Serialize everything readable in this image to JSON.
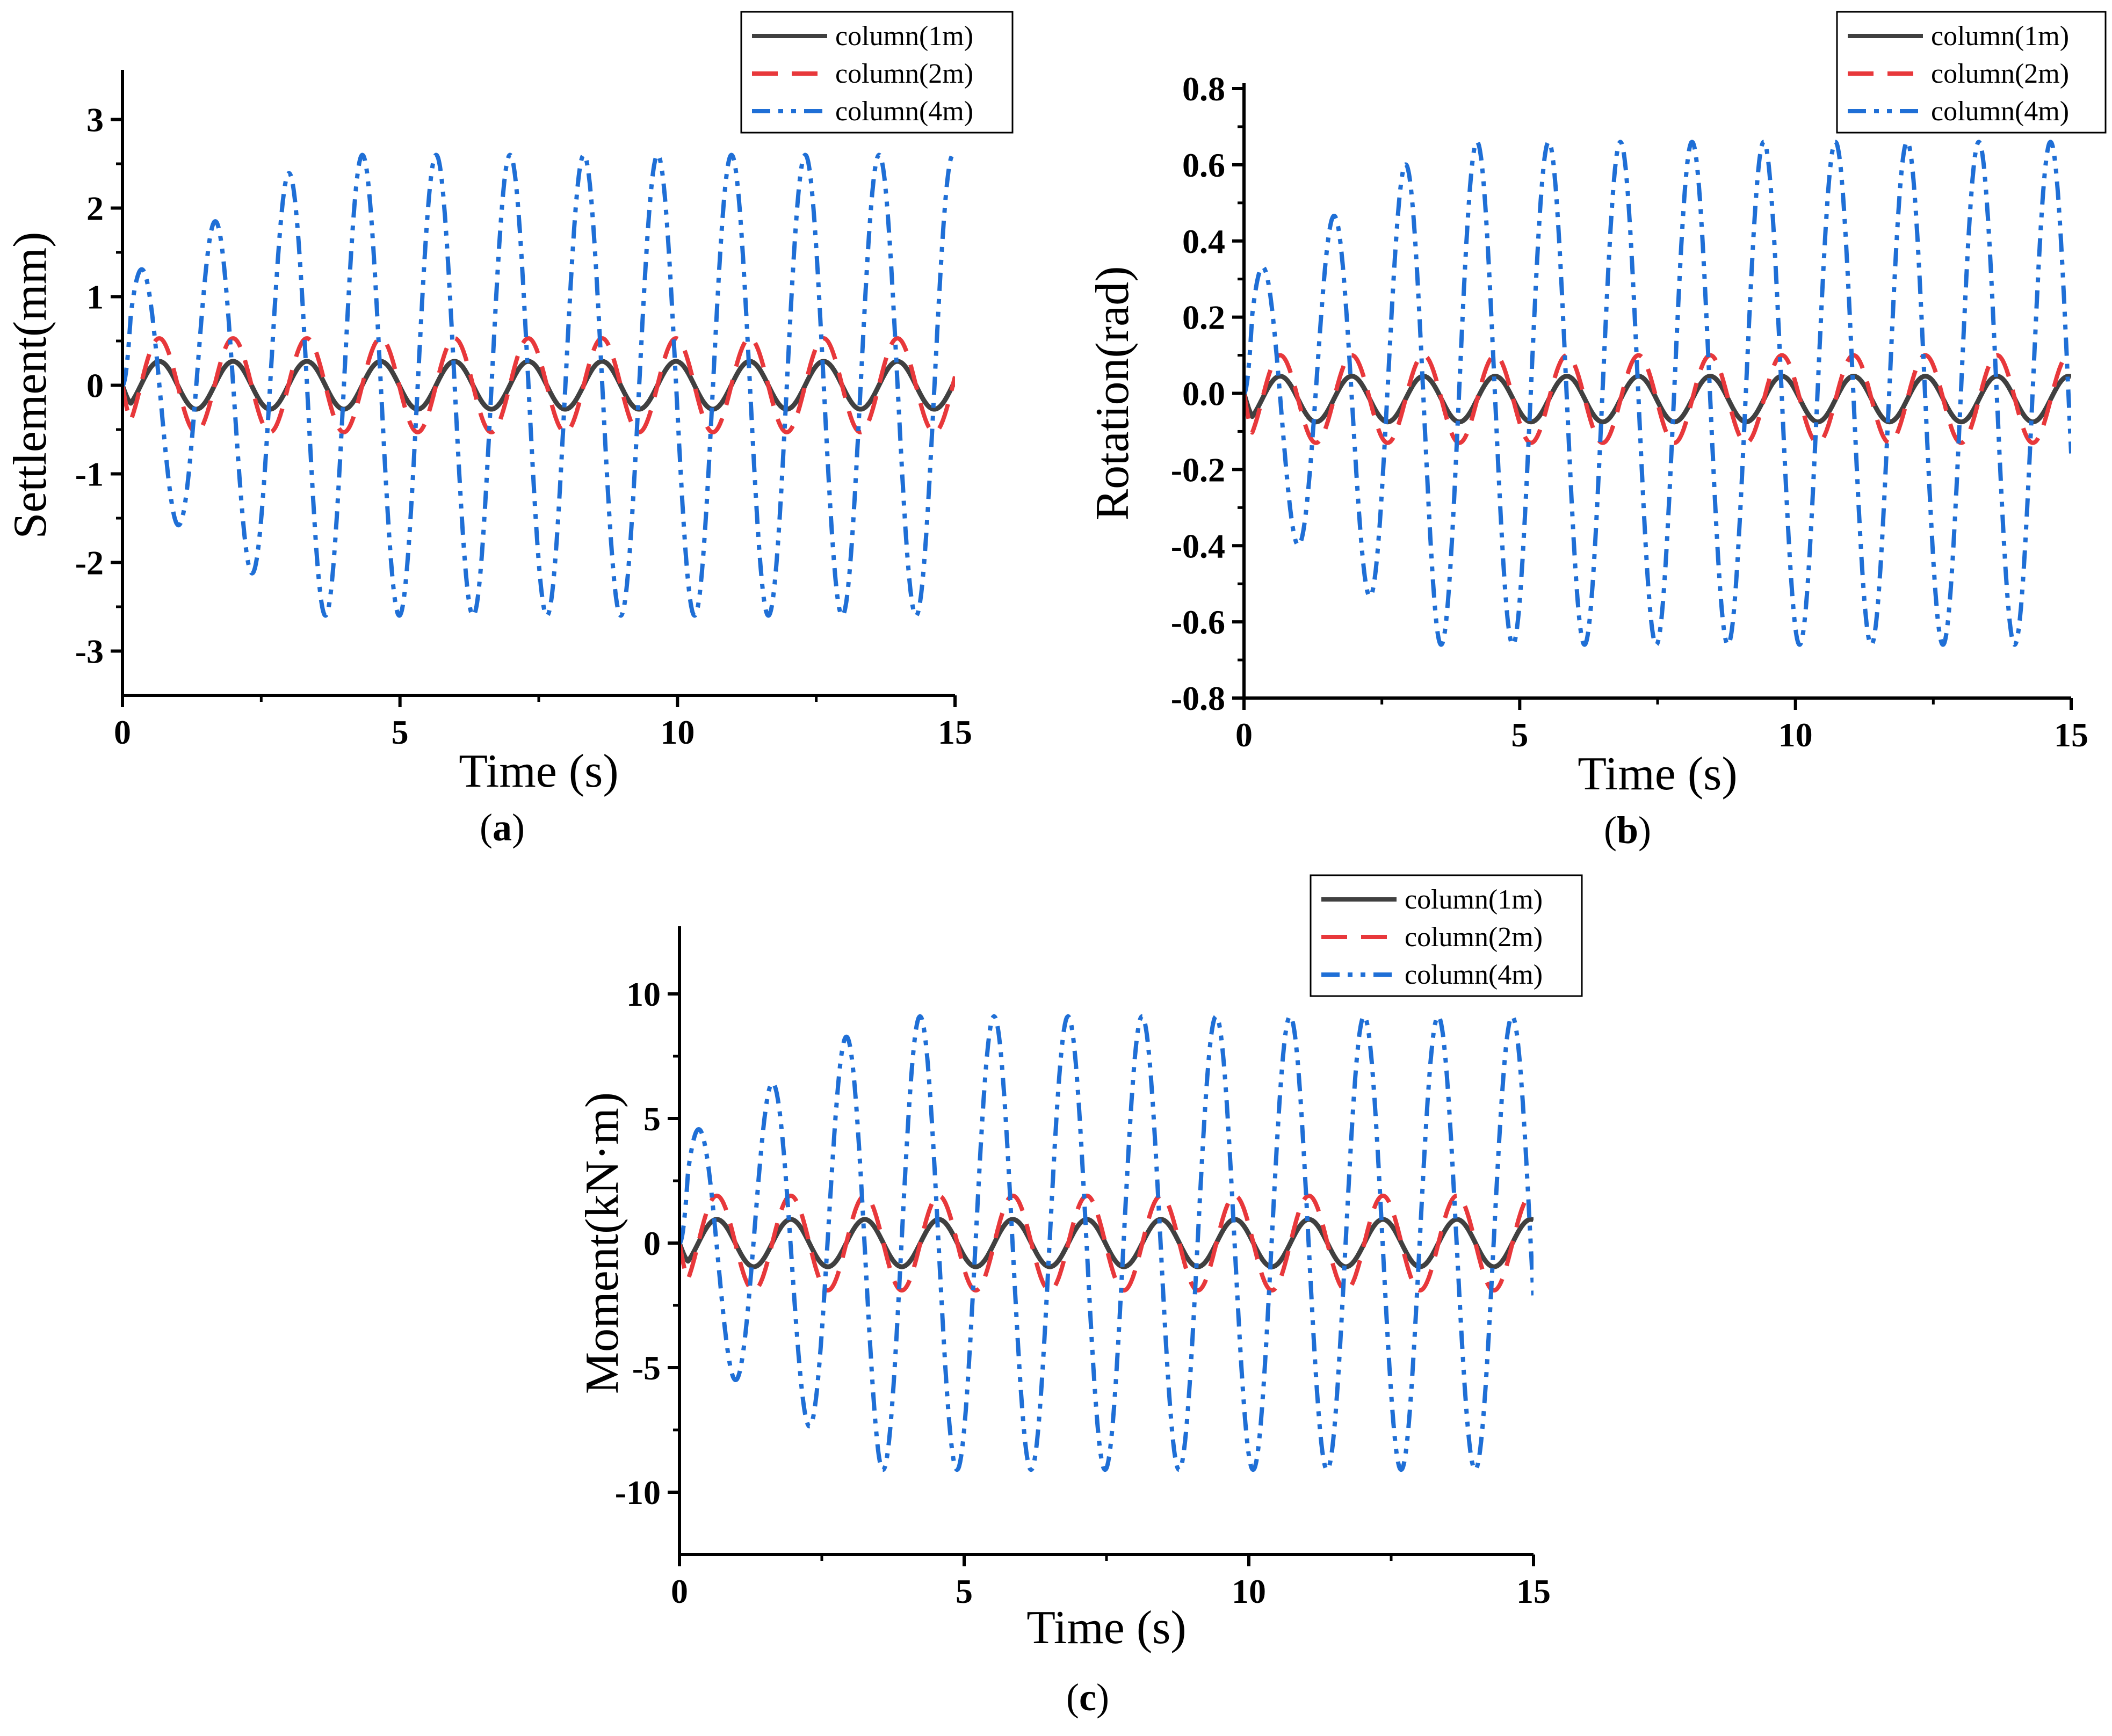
{
  "chart_data": [
    {
      "type": "line",
      "caption": {
        "open": "(",
        "letter": "a",
        "close": ")"
      },
      "xlabel": "Time (s)",
      "ylabel": "Settlement(mm)",
      "xlim": [
        0,
        15
      ],
      "ylim": [
        -3.5,
        3.5
      ],
      "xticks": [
        "0",
        "5",
        "10",
        "15"
      ],
      "xtick_values": [
        0,
        5,
        10,
        15
      ],
      "yticks": [
        "-3",
        "-2",
        "-1",
        "0",
        "1",
        "2",
        "3"
      ],
      "ytick_values": [
        -3,
        -2,
        -1,
        0,
        1,
        2,
        3
      ],
      "legend_position": "top-right",
      "series": [
        {
          "name": "column(1m)",
          "color": "#404040",
          "style": "solid",
          "amplitude": 0.27,
          "period": 1.33,
          "phase": 0.33
        },
        {
          "name": "column(2m)",
          "color": "#e8383b",
          "style": "dashed",
          "amplitude": 0.53,
          "period": 1.33,
          "phase": 0.33
        },
        {
          "name": "column(4m)",
          "color": "#1f6fd6",
          "style": "dash-dot-dot",
          "amplitude": 2.6,
          "period": 1.33,
          "phase": 0.0,
          "rise_time": 3.5
        }
      ]
    },
    {
      "type": "line",
      "caption": {
        "open": "(",
        "letter": "b",
        "close": ")"
      },
      "xlabel": "Time (s)",
      "ylabel": "Rotation(rad)",
      "xlim": [
        0,
        15
      ],
      "ylim": [
        -0.8,
        0.8
      ],
      "xticks": [
        "0",
        "5",
        "10",
        "15"
      ],
      "xtick_values": [
        0,
        5,
        10,
        15
      ],
      "yticks": [
        "-0.8",
        "-0.6",
        "-0.4",
        "-0.2",
        "0.0",
        "0.2",
        "0.4",
        "0.6",
        "0.8"
      ],
      "ytick_values": [
        -0.8,
        -0.6,
        -0.4,
        -0.2,
        0.0,
        0.2,
        0.4,
        0.6,
        0.8
      ],
      "legend_position": "top-right",
      "series": [
        {
          "name": "column(1m)",
          "color": "#404040",
          "style": "solid",
          "amplitude": 0.06,
          "offset": -0.015,
          "period": 1.3,
          "phase": 0.33
        },
        {
          "name": "column(2m)",
          "color": "#e8383b",
          "style": "dashed",
          "amplitude": 0.115,
          "offset": -0.015,
          "period": 1.3,
          "phase": 0.33
        },
        {
          "name": "column(4m)",
          "color": "#1f6fd6",
          "style": "dash-dot-dot",
          "amplitude": 0.66,
          "period": 1.3,
          "phase": 0.0,
          "rise_time": 3.5
        }
      ]
    },
    {
      "type": "line",
      "caption": {
        "open": "(",
        "letter": "c",
        "close": ")"
      },
      "xlabel": "Time (s)",
      "ylabel": "Moment(kN·m)",
      "xlim": [
        0,
        15
      ],
      "ylim": [
        -12.5,
        12.5
      ],
      "xticks": [
        "0",
        "5",
        "10",
        "15"
      ],
      "xtick_values": [
        0,
        5,
        10,
        15
      ],
      "yticks": [
        "-10",
        "-5",
        "0",
        "5",
        "10"
      ],
      "ytick_values": [
        -10,
        -5,
        0,
        5,
        10
      ],
      "legend_position": "top-right",
      "series": [
        {
          "name": "column(1m)",
          "color": "#404040",
          "style": "solid",
          "amplitude": 0.95,
          "period": 1.3,
          "phase": 0.33
        },
        {
          "name": "column(2m)",
          "color": "#e8383b",
          "style": "dashed",
          "amplitude": 1.9,
          "period": 1.3,
          "phase": 0.33
        },
        {
          "name": "column(4m)",
          "color": "#1f6fd6",
          "style": "dash-dot-dot",
          "amplitude": 9.1,
          "period": 1.3,
          "phase": 0.0,
          "rise_time": 3.5
        }
      ]
    }
  ]
}
